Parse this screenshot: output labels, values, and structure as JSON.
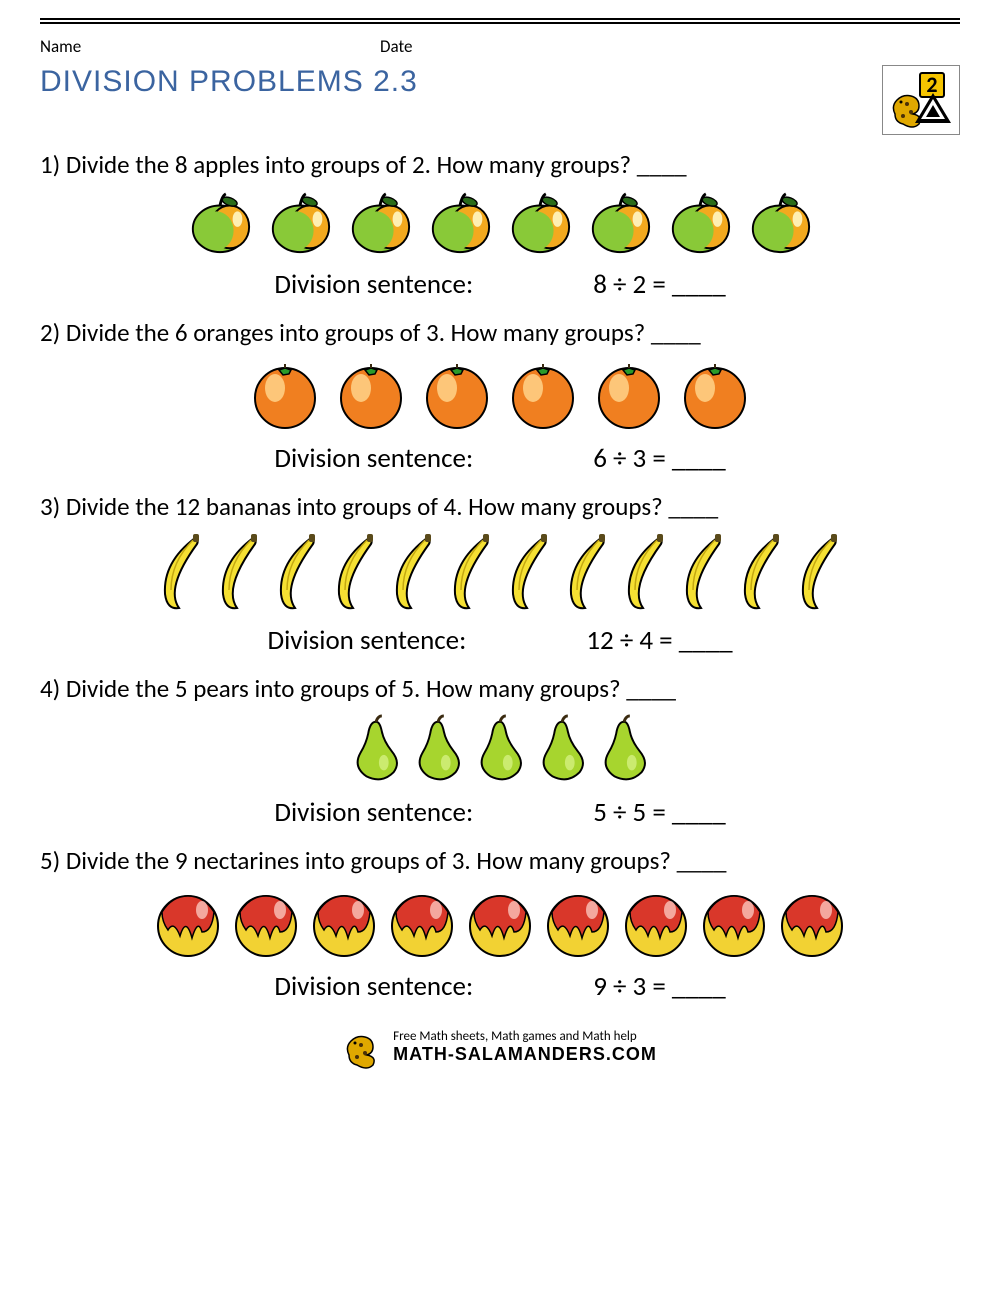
{
  "header": {
    "name_label": "Name",
    "date_label": "Date",
    "title": "DIVISION PROBLEMS 2.3",
    "grade_number": "2"
  },
  "sentence_label": "Division sentence:",
  "problems": [
    {
      "text": "1) Divide the 8 apples into groups of 2. How many groups? ____",
      "icon": "apple",
      "count": 8,
      "equation": "8 ÷ 2 = ____"
    },
    {
      "text": "2) Divide the 6 oranges into groups of 3. How many groups? ____",
      "icon": "orange",
      "count": 6,
      "equation": "6 ÷ 3 = ____"
    },
    {
      "text": "3) Divide the 12 bananas into groups of 4. How many groups? ____",
      "icon": "banana",
      "count": 12,
      "equation": "12 ÷ 4 = ____"
    },
    {
      "text": "4) Divide the 5 pears into groups of 5. How many groups? ____",
      "icon": "pear",
      "count": 5,
      "equation": "5 ÷ 5 = ____"
    },
    {
      "text": "5) Divide the 9 nectarines into groups of 3. How many groups? ____",
      "icon": "nectarine",
      "count": 9,
      "equation": "9 ÷ 3 = ____"
    }
  ],
  "footer": {
    "tagline": "Free Math sheets, Math games and Math help",
    "brand": "MATH-SALAMANDERS.COM"
  },
  "colors": {
    "title": "#3b64a0",
    "apple_green": "#89c938",
    "apple_orange": "#f2a91f",
    "orange_fill": "#f07f20",
    "orange_highlight": "#ffd28a",
    "orange_leaf": "#2a9b2a",
    "banana_fill": "#f5e033",
    "pear_fill": "#a7d52e",
    "nectarine_red": "#d9372a",
    "nectarine_yellow": "#f2d233",
    "salamander": "#e0a800"
  }
}
